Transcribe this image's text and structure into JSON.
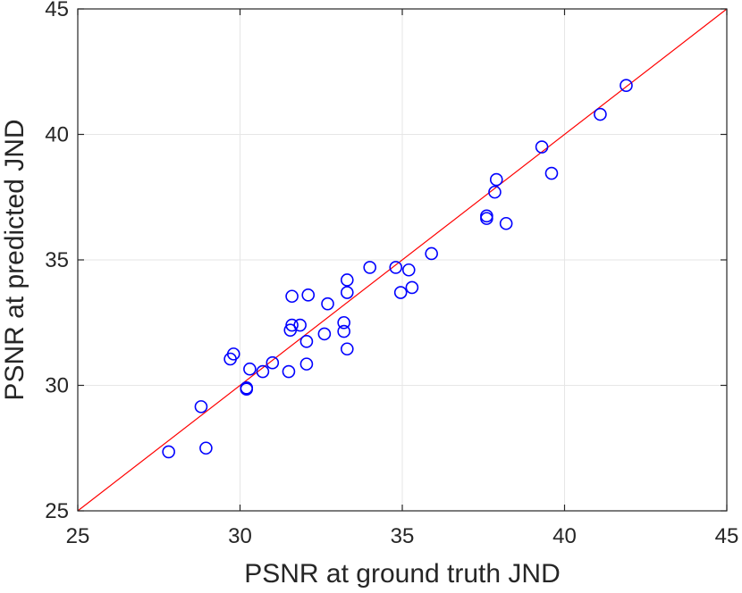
{
  "chart_data": {
    "type": "scatter",
    "xlabel": "PSNR at ground truth JND",
    "ylabel": "PSNR at predicted JND",
    "xlim": [
      25,
      45
    ],
    "ylim": [
      25,
      45
    ],
    "x_ticks": [
      "25",
      "30",
      "35",
      "40",
      "45"
    ],
    "y_ticks": [
      "25",
      "30",
      "35",
      "40",
      "45"
    ],
    "grid": true,
    "reference_line": {
      "from": [
        25,
        25
      ],
      "to": [
        45,
        45
      ],
      "color": "#ff0000"
    },
    "marker": {
      "shape": "circle",
      "fill": "none",
      "color": "#0000ff"
    },
    "points": [
      {
        "x": 27.8,
        "y": 27.35
      },
      {
        "x": 28.8,
        "y": 29.15
      },
      {
        "x": 28.95,
        "y": 27.5
      },
      {
        "x": 29.7,
        "y": 31.05
      },
      {
        "x": 29.8,
        "y": 31.25
      },
      {
        "x": 30.2,
        "y": 29.85
      },
      {
        "x": 30.2,
        "y": 29.9
      },
      {
        "x": 30.3,
        "y": 30.65
      },
      {
        "x": 30.7,
        "y": 30.55
      },
      {
        "x": 31.0,
        "y": 30.9
      },
      {
        "x": 31.5,
        "y": 30.55
      },
      {
        "x": 31.55,
        "y": 32.2
      },
      {
        "x": 31.6,
        "y": 32.4
      },
      {
        "x": 31.6,
        "y": 33.55
      },
      {
        "x": 31.85,
        "y": 32.4
      },
      {
        "x": 32.05,
        "y": 30.85
      },
      {
        "x": 32.05,
        "y": 31.75
      },
      {
        "x": 32.1,
        "y": 33.6
      },
      {
        "x": 32.6,
        "y": 32.05
      },
      {
        "x": 32.7,
        "y": 33.25
      },
      {
        "x": 33.2,
        "y": 32.15
      },
      {
        "x": 33.2,
        "y": 32.5
      },
      {
        "x": 33.3,
        "y": 31.45
      },
      {
        "x": 33.3,
        "y": 33.7
      },
      {
        "x": 33.3,
        "y": 34.2
      },
      {
        "x": 34.0,
        "y": 34.7
      },
      {
        "x": 34.8,
        "y": 34.7
      },
      {
        "x": 34.95,
        "y": 33.7
      },
      {
        "x": 35.2,
        "y": 34.6
      },
      {
        "x": 35.3,
        "y": 33.9
      },
      {
        "x": 35.9,
        "y": 35.25
      },
      {
        "x": 37.6,
        "y": 36.65
      },
      {
        "x": 37.6,
        "y": 36.75
      },
      {
        "x": 37.85,
        "y": 37.7
      },
      {
        "x": 37.9,
        "y": 38.2
      },
      {
        "x": 38.2,
        "y": 36.45
      },
      {
        "x": 39.3,
        "y": 39.5
      },
      {
        "x": 39.6,
        "y": 38.45
      },
      {
        "x": 41.1,
        "y": 40.8
      },
      {
        "x": 41.9,
        "y": 41.95
      }
    ]
  }
}
